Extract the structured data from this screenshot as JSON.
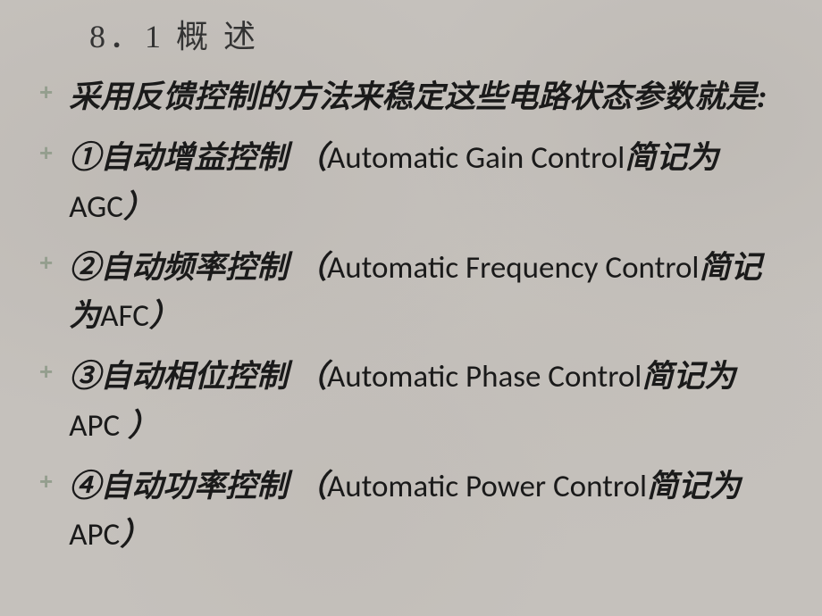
{
  "slide": {
    "title": "8．1 概 述",
    "background_color": "#c5c1bc",
    "bullet_color": "#949e8e",
    "text_color": "#1a1a1a",
    "title_color": "#333333",
    "title_fontsize": 36,
    "body_fontsize": 35,
    "bullets": [
      {
        "text": "采用反馈控制的方法来稳定这些电路状态参数就是:"
      },
      {
        "text": "①自动增益控制 （Automatic Gain Control简记为AGC）"
      },
      {
        "text": "②自动频率控制 （Automatic Frequency Control简记为AFC）"
      },
      {
        "text": "③自动相位控制 （Automatic Phase Control简记为APC ）"
      },
      {
        "text": "④自动功率控制 （Automatic Power Control简记为APC）"
      }
    ]
  }
}
